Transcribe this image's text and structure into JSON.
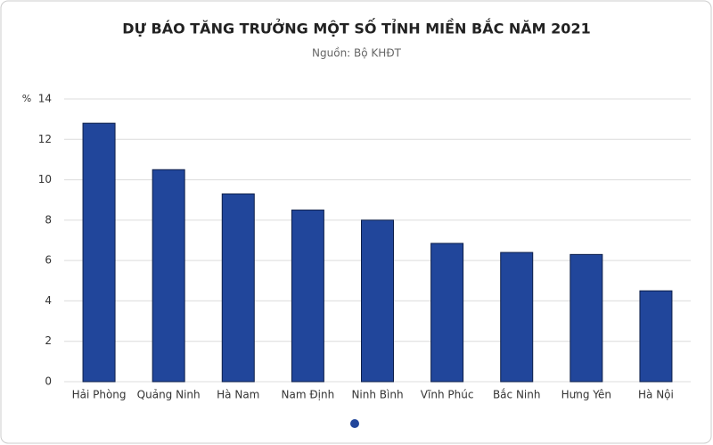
{
  "chart_data": {
    "type": "bar",
    "title": "DỰ BÁO TĂNG TRƯỞNG MỘT SỐ TỈNH MIỀN BẮC NĂM 2021",
    "subtitle": "Nguồn: Bộ KHĐT",
    "y_label": "%",
    "categories": [
      "Hải Phòng",
      "Quảng Ninh",
      "Hà Nam",
      "Nam Định",
      "Ninh Bình",
      "Vĩnh Phúc",
      "Bắc Ninh",
      "Hưng Yên",
      "Hà Nội"
    ],
    "values": [
      12.8,
      10.5,
      9.3,
      8.5,
      8.0,
      6.85,
      6.4,
      6.3,
      4.5
    ],
    "color": "#21469b",
    "ylim": [
      0,
      14
    ],
    "yticks": [
      0,
      2,
      4,
      6,
      8,
      10,
      12,
      14
    ],
    "grid": true
  }
}
